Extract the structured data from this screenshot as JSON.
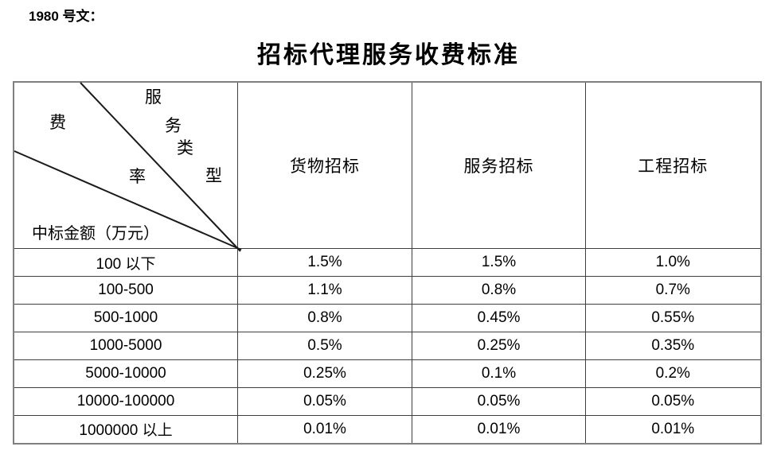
{
  "doc_label": "1980 号文：",
  "title": "招标代理服务收费标准",
  "table": {
    "corner": {
      "fee_rate_chars": [
        "费",
        "率"
      ],
      "service_type_chars": [
        "服",
        "务",
        "类",
        "型"
      ],
      "row_axis_label": "中标金额（万元）"
    },
    "columns": [
      "货物招标",
      "服务招标",
      "工程招标"
    ],
    "rows": [
      {
        "label": "100 以下",
        "values": [
          "1.5%",
          "1.5%",
          "1.0%"
        ]
      },
      {
        "label": "100-500",
        "values": [
          "1.1%",
          "0.8%",
          "0.7%"
        ]
      },
      {
        "label": "500-1000",
        "values": [
          "0.8%",
          "0.45%",
          "0.55%"
        ]
      },
      {
        "label": "1000-5000",
        "values": [
          "0.5%",
          "0.25%",
          "0.35%"
        ]
      },
      {
        "label": "5000-10000",
        "values": [
          "0.25%",
          "0.1%",
          "0.2%"
        ]
      },
      {
        "label": "10000-100000",
        "values": [
          "0.05%",
          "0.05%",
          "0.05%"
        ]
      },
      {
        "label": "1000000 以上",
        "values": [
          "0.01%",
          "0.01%",
          "0.01%"
        ]
      }
    ]
  },
  "colors": {
    "background": "#ffffff",
    "text": "#000000",
    "grid": "#3f3f3f",
    "outer": "#7f7f7f",
    "diagonal": "#1a1a1a"
  }
}
